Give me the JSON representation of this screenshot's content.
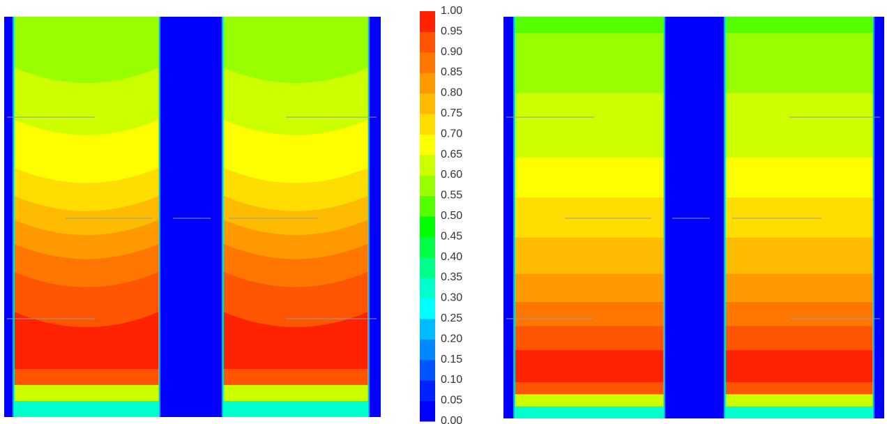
{
  "chart_data": {
    "type": "heatmap",
    "title": "",
    "xlabel": "",
    "ylabel": "",
    "colorbar": {
      "range": [
        0.0,
        1.0
      ],
      "step": 0.05,
      "tick_labels": [
        "1.00",
        "0.95",
        "0.90",
        "0.85",
        "0.80",
        "0.75",
        "0.70",
        "0.65",
        "0.60",
        "0.55",
        "0.50",
        "0.45",
        "0.40",
        "0.35",
        "0.30",
        "0.25",
        "0.20",
        "0.15",
        "0.10",
        "0.05",
        "0.00"
      ],
      "colors": [
        "#0000ff",
        "#0022ff",
        "#0055ff",
        "#0088ff",
        "#00bbff",
        "#00ffff",
        "#00ffcc",
        "#00ff88",
        "#00ff44",
        "#00ff00",
        "#55ff00",
        "#99ff00",
        "#ccff00",
        "#ffff00",
        "#ffdd00",
        "#ffbb00",
        "#ff9900",
        "#ff7700",
        "#ff5500",
        "#ff2200"
      ]
    },
    "panels": [
      {
        "name": "left",
        "fluid_region_value": 0.0,
        "columns": 2,
        "bands": [
          {
            "level_top": 0.0,
            "value": 0.55
          },
          {
            "level_top": 0.15,
            "value": 0.6
          },
          {
            "level_top": 0.28,
            "value": 0.65
          },
          {
            "level_top": 0.4,
            "value": 0.7
          },
          {
            "level_top": 0.47,
            "value": 0.75
          },
          {
            "level_top": 0.53,
            "value": 0.8
          },
          {
            "level_top": 0.59,
            "value": 0.85
          },
          {
            "level_top": 0.66,
            "value": 0.9
          },
          {
            "level_top": 0.76,
            "value": 0.95
          },
          {
            "level_top": 0.88,
            "value": 0.9
          },
          {
            "level_top": 0.92,
            "value": 0.6
          },
          {
            "level_top": 0.96,
            "value": 0.3
          }
        ]
      },
      {
        "name": "right",
        "fluid_region_value": 0.0,
        "columns": 2,
        "bands": [
          {
            "level_top": 0.0,
            "value": 0.5
          },
          {
            "level_top": 0.04,
            "value": 0.55
          },
          {
            "level_top": 0.19,
            "value": 0.6
          },
          {
            "level_top": 0.35,
            "value": 0.65
          },
          {
            "level_top": 0.45,
            "value": 0.7
          },
          {
            "level_top": 0.55,
            "value": 0.75
          },
          {
            "level_top": 0.64,
            "value": 0.8
          },
          {
            "level_top": 0.71,
            "value": 0.85
          },
          {
            "level_top": 0.77,
            "value": 0.9
          },
          {
            "level_top": 0.83,
            "value": 0.95
          },
          {
            "level_top": 0.91,
            "value": 0.9
          },
          {
            "level_top": 0.94,
            "value": 0.6
          },
          {
            "level_top": 0.97,
            "value": 0.3
          }
        ]
      }
    ]
  }
}
